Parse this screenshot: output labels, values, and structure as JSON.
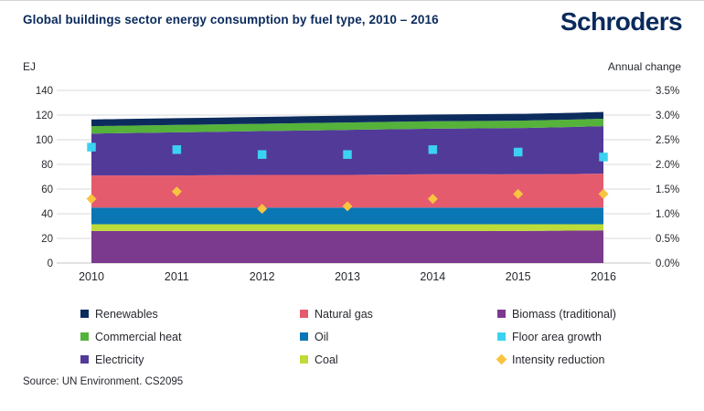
{
  "header": {
    "title": "Global buildings sector energy consumption by fuel type, 2010 – 2016",
    "logo_text": "Schroders"
  },
  "colors": {
    "navy_text": "#0a2a5c",
    "renewables": "#0d2c5e",
    "commercial_heat": "#55b23a",
    "electricity": "#523a99",
    "natural_gas": "#e55b6e",
    "oil": "#0b76b4",
    "coal": "#bedc39",
    "biomass": "#7b3a8d",
    "floor_area_growth": "#3bd2f1",
    "intensity_reduction": "#f9c440",
    "gridline": "#d9d9d9",
    "axis_line": "#c6c6c6",
    "tick_text": "#26282e"
  },
  "chart_data": {
    "type": "area",
    "stacked": true,
    "title": "Global buildings sector energy consumption by fuel type, 2010 – 2016",
    "unit_left": "EJ",
    "unit_right": "Annual change",
    "x": [
      "2010",
      "2011",
      "2012",
      "2013",
      "2014",
      "2015",
      "2016"
    ],
    "ylim_left": [
      0,
      140
    ],
    "ylim_right_pct": [
      0,
      3.5
    ],
    "yticks_left": [
      "0",
      "20",
      "40",
      "60",
      "80",
      "100",
      "120",
      "140"
    ],
    "yticks_right": [
      "0.0%",
      "0.5%",
      "1.0%",
      "1.5%",
      "2.0%",
      "2.5%",
      "3.0%",
      "3.5%"
    ],
    "grid": "horizontal",
    "series": [
      {
        "name": "Biomass (traditional)",
        "color_key": "biomass",
        "axis": "left",
        "values": [
          26,
          26,
          26,
          26,
          26,
          26,
          26.5
        ]
      },
      {
        "name": "Coal",
        "color_key": "coal",
        "axis": "left",
        "values": [
          5.5,
          5.5,
          5.5,
          5.5,
          5.5,
          5.5,
          5
        ]
      },
      {
        "name": "Oil",
        "color_key": "oil",
        "axis": "left",
        "values": [
          13.5,
          13.5,
          13.5,
          13.5,
          13.5,
          13.5,
          13.5
        ]
      },
      {
        "name": "Natural gas",
        "color_key": "natural_gas",
        "axis": "left",
        "values": [
          26,
          26,
          26.5,
          26.5,
          27,
          27,
          27.5
        ]
      },
      {
        "name": "Electricity",
        "color_key": "electricity",
        "axis": "left",
        "values": [
          34,
          35,
          35.5,
          36.5,
          37,
          37.5,
          38.5
        ]
      },
      {
        "name": "Commercial heat",
        "color_key": "commercial_heat",
        "axis": "left",
        "values": [
          6,
          6,
          6,
          6,
          6,
          6,
          6
        ]
      },
      {
        "name": "Renewables",
        "color_key": "renewables",
        "axis": "left",
        "values": [
          5.5,
          5.5,
          5.5,
          5.5,
          5.5,
          5.5,
          5.5
        ]
      }
    ],
    "markers": [
      {
        "name": "Floor area growth",
        "color_key": "floor_area_growth",
        "shape": "square",
        "axis": "right",
        "values_pct": [
          2.35,
          2.3,
          2.2,
          2.2,
          2.3,
          2.25,
          2.15
        ]
      },
      {
        "name": "Intensity reduction",
        "color_key": "intensity_reduction",
        "shape": "diamond",
        "axis": "right",
        "values_pct": [
          1.3,
          1.45,
          1.1,
          1.15,
          1.3,
          1.4,
          1.4
        ]
      }
    ]
  },
  "legend": {
    "items": [
      {
        "label": "Renewables",
        "color_key": "renewables",
        "shape": "square"
      },
      {
        "label": "Natural gas",
        "color_key": "natural_gas",
        "shape": "square"
      },
      {
        "label": "Biomass (traditional)",
        "color_key": "biomass",
        "shape": "square"
      },
      {
        "label": "Commercial heat",
        "color_key": "commercial_heat",
        "shape": "square"
      },
      {
        "label": "Oil",
        "color_key": "oil",
        "shape": "square"
      },
      {
        "label": "Floor area growth",
        "color_key": "floor_area_growth",
        "shape": "square"
      },
      {
        "label": "Electricity",
        "color_key": "electricity",
        "shape": "square"
      },
      {
        "label": "Coal",
        "color_key": "coal",
        "shape": "square"
      },
      {
        "label": "Intensity reduction",
        "color_key": "intensity_reduction",
        "shape": "diamond"
      }
    ]
  },
  "footer": {
    "source": "Source: UN Environment. CS2095"
  }
}
